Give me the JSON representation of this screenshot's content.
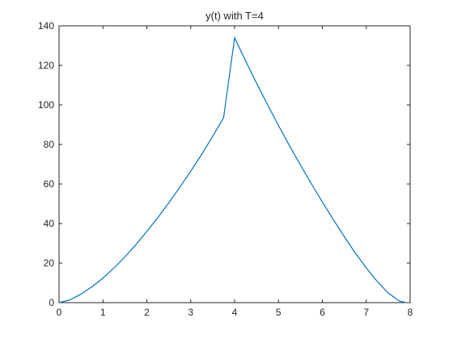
{
  "chart_data": {
    "type": "line",
    "title": "y(t) with T=4",
    "xlabel": "",
    "ylabel": "",
    "xlim": [
      0,
      8
    ],
    "ylim": [
      0,
      140
    ],
    "xticks": [
      0,
      1,
      2,
      3,
      4,
      5,
      6,
      7,
      8
    ],
    "yticks": [
      0,
      20,
      40,
      60,
      80,
      100,
      120,
      140
    ],
    "grid": false,
    "legend": "none",
    "line_color": "#0072BD",
    "series": [
      {
        "x": [
          0,
          0.25,
          0.5,
          0.75,
          1,
          1.25,
          1.5,
          1.75,
          2,
          2.25,
          2.5,
          2.75,
          3,
          3.25,
          3.5,
          3.75,
          4,
          4.25,
          4.5,
          4.75,
          5,
          5.25,
          5.5,
          5.75,
          6,
          6.25,
          6.5,
          6.75,
          7,
          7.25,
          7.5,
          7.75,
          7.9
        ],
        "y": [
          0,
          1.4,
          4.3,
          8.0,
          12.4,
          17.5,
          23.1,
          29.3,
          36.0,
          43.0,
          50.5,
          58.3,
          66.5,
          75.0,
          84.1,
          93.6,
          134,
          122.3,
          111.0,
          100.2,
          89.6,
          79.4,
          69.6,
          60.1,
          50.9,
          42.0,
          33.4,
          25.1,
          17.6,
          10.7,
          4.9,
          0.9,
          0
        ]
      }
    ]
  }
}
